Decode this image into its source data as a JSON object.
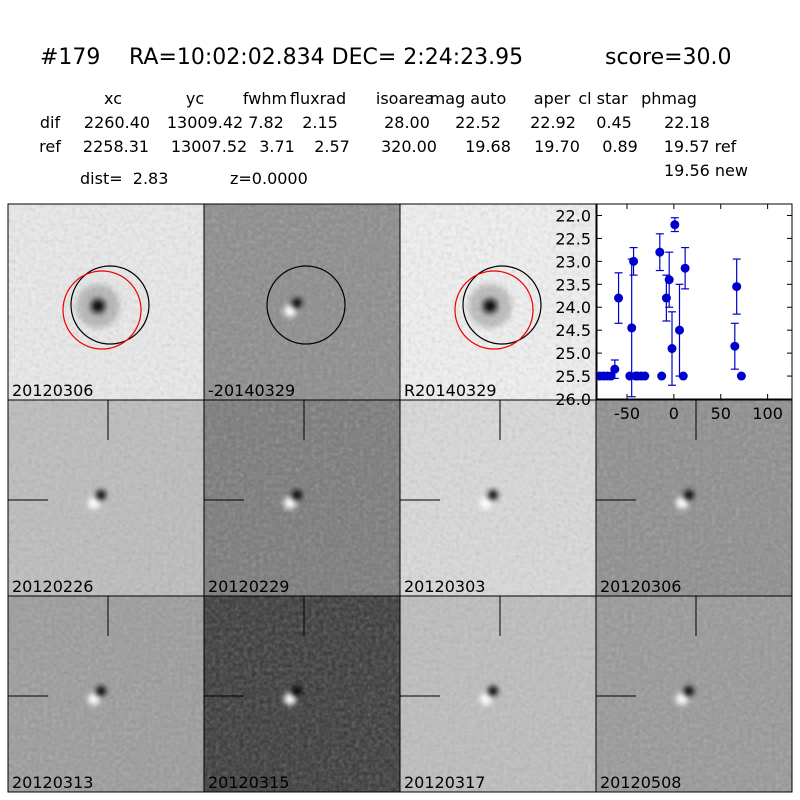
{
  "header": {
    "id": "#179",
    "coords": "RA=10:02:02.834 DEC= 2:24:23.95",
    "score": "score=30.0"
  },
  "table": {
    "columns": [
      "xc",
      "yc",
      "fwhm",
      "fluxrad",
      "isoarea",
      "mag auto",
      "aper",
      "cl star",
      "phmag"
    ],
    "rows": [
      [
        "dif",
        "2260.40",
        "13009.42",
        "7.82",
        "2.15",
        "28.00",
        "22.52",
        "22.92",
        "0.45",
        "22.18"
      ],
      [
        "ref",
        "2258.31",
        "13007.52",
        "3.71",
        "2.57",
        "320.00",
        "19.68",
        "19.70",
        "0.89",
        "19.57 ref"
      ]
    ],
    "extra": "19.56 new"
  },
  "info": {
    "dist": "dist=  2.83",
    "z": "z=0.0000"
  },
  "stamps": [
    {
      "label": "20120306"
    },
    {
      "label": "-20140329"
    },
    {
      "label": "R20140329"
    },
    {
      "label": "20120226"
    },
    {
      "label": "20120229"
    },
    {
      "label": "20120303"
    },
    {
      "label": "20120306",
      "color": "#ff0000"
    },
    {
      "label": "20120313"
    },
    {
      "label": "20120315"
    },
    {
      "label": "20120317"
    },
    {
      "label": "20120508"
    }
  ],
  "chart_data": {
    "type": "scatter",
    "color": "#0000cc",
    "x": [
      -79,
      -75,
      -71,
      -67,
      -63,
      -59,
      -47,
      -45,
      -43,
      -41,
      -39,
      -35,
      -31,
      -15,
      -13,
      -8,
      -5,
      -2,
      1,
      6,
      10,
      12,
      65,
      67,
      72
    ],
    "values": [
      25.5,
      25.5,
      25.5,
      25.5,
      25.35,
      23.8,
      25.5,
      24.45,
      23.0,
      25.5,
      25.5,
      25.5,
      25.5,
      22.8,
      25.5,
      23.8,
      23.4,
      24.9,
      22.2,
      24.5,
      25.5,
      23.15,
      24.85,
      23.55,
      25.5
    ],
    "errors": [
      null,
      null,
      null,
      null,
      0.2,
      0.55,
      null,
      1.5,
      0.3,
      null,
      null,
      null,
      null,
      0.4,
      null,
      0.5,
      0.6,
      0.8,
      0.15,
      1.0,
      null,
      0.45,
      0.5,
      0.6,
      null
    ],
    "xlim": [
      -82,
      126
    ],
    "ylim": [
      26.0,
      21.75
    ],
    "xticks": [
      -50,
      0,
      50,
      100
    ],
    "yticks": [
      {
        "value": 22.0,
        "label": "22.0"
      },
      {
        "value": 22.5,
        "label": "22.5"
      },
      {
        "value": 23.0,
        "label": "23.0"
      },
      {
        "value": 23.5,
        "label": "23.5"
      },
      {
        "value": 24.0,
        "label": "24.0"
      },
      {
        "value": 24.5,
        "label": "24.5"
      },
      {
        "value": 25.0,
        "label": "25.0"
      },
      {
        "value": 25.5,
        "label": "25.5"
      },
      {
        "value": 26.0,
        "label": "26.0"
      }
    ]
  }
}
